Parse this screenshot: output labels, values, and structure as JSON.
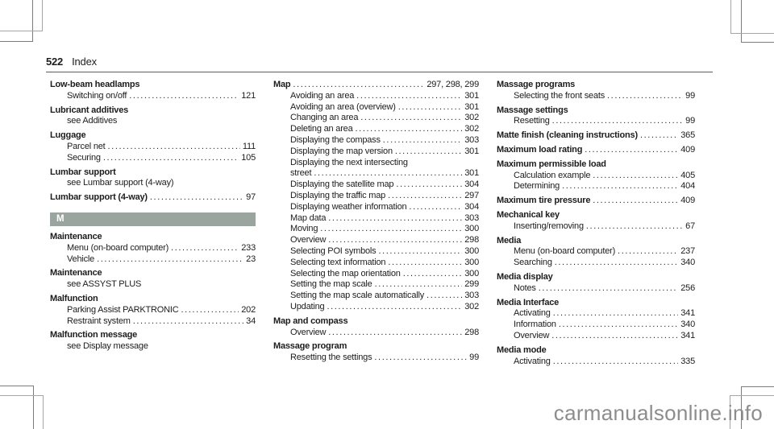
{
  "page": {
    "number": "522",
    "section": "Index"
  },
  "watermark": "carmanualsonline.info",
  "colors": {
    "section_bar": "#9ba5a0",
    "header_rule": "#54605d",
    "text": "#1c1c1c",
    "watermark": "#8d8d8d"
  },
  "columns": [
    {
      "blocks": [
        {
          "title": "Low-beam headlamps",
          "subs": [
            {
              "label": "Switching on/off",
              "pages": "121"
            }
          ]
        },
        {
          "title": "Lubricant additives",
          "subs": [
            {
              "label": "see Additives"
            }
          ]
        },
        {
          "title": "Luggage",
          "subs": [
            {
              "label": "Parcel net",
              "pages": "111"
            },
            {
              "label": "Securing",
              "pages": "105"
            }
          ]
        },
        {
          "title": "Lumbar support",
          "subs": [
            {
              "label": "see Lumbar support (4-way)"
            }
          ]
        },
        {
          "title": "Lumbar support (4-way)",
          "pages": "97",
          "subs": []
        },
        {
          "type": "section",
          "label": "M"
        },
        {
          "title": "Maintenance",
          "subs": [
            {
              "label": "Menu (on-board computer)",
              "pages": "233"
            },
            {
              "label": "Vehicle",
              "pages": "23"
            }
          ]
        },
        {
          "title": "Maintenance",
          "subs": [
            {
              "label": "see ASSYST PLUS"
            }
          ]
        },
        {
          "title": "Malfunction",
          "subs": [
            {
              "label": "Parking Assist PARKTRONIC",
              "pages": "202"
            },
            {
              "label": "Restraint system",
              "pages": "34"
            }
          ]
        },
        {
          "title": "Malfunction message",
          "subs": [
            {
              "label": "see Display message"
            }
          ]
        }
      ]
    },
    {
      "blocks": [
        {
          "title": "Map",
          "pages": "297, 298, 299",
          "subs": [
            {
              "label": "Avoiding an area",
              "pages": "301"
            },
            {
              "label": "Avoiding an area (overview)",
              "pages": "301"
            },
            {
              "label": "Changing an area",
              "pages": "302"
            },
            {
              "label": "Deleting an area",
              "pages": "302"
            },
            {
              "label": "Displaying the compass",
              "pages": "303"
            },
            {
              "label": "Displaying the map version",
              "pages": "301"
            },
            {
              "label": "Displaying the next intersecting"
            },
            {
              "label": "street",
              "pages": "301"
            },
            {
              "label": "Displaying the satellite map",
              "pages": "304"
            },
            {
              "label": "Displaying the traffic map",
              "pages": "297"
            },
            {
              "label": "Displaying weather information",
              "pages": "304"
            },
            {
              "label": "Map data",
              "pages": "303"
            },
            {
              "label": "Moving",
              "pages": "300"
            },
            {
              "label": "Overview",
              "pages": "298"
            },
            {
              "label": "Selecting POI symbols",
              "pages": "300"
            },
            {
              "label": "Selecting text information",
              "pages": "300"
            },
            {
              "label": "Selecting the map orientation",
              "pages": "300"
            },
            {
              "label": "Setting the map scale",
              "pages": "299"
            },
            {
              "label": "Setting the map scale automatically",
              "pages": "303"
            },
            {
              "label": "Updating",
              "pages": "302"
            }
          ]
        },
        {
          "title": "Map and compass",
          "subs": [
            {
              "label": "Overview",
              "pages": "298"
            }
          ]
        },
        {
          "title": "Massage program",
          "subs": [
            {
              "label": "Resetting the settings",
              "pages": "99"
            }
          ]
        }
      ]
    },
    {
      "blocks": [
        {
          "title": "Massage programs",
          "subs": [
            {
              "label": "Selecting the front seats",
              "pages": "99"
            }
          ]
        },
        {
          "title": "Massage settings",
          "subs": [
            {
              "label": "Resetting",
              "pages": "99"
            }
          ]
        },
        {
          "title": "Matte finish (cleaning instructions)",
          "pages": "365",
          "subs": []
        },
        {
          "title": "Maximum load rating",
          "pages": "409",
          "subs": []
        },
        {
          "title": "Maximum permissible load",
          "subs": [
            {
              "label": "Calculation example",
              "pages": "405"
            },
            {
              "label": "Determining",
              "pages": "404"
            }
          ]
        },
        {
          "title": "Maximum tire pressure",
          "pages": "409",
          "subs": []
        },
        {
          "title": "Mechanical key",
          "subs": [
            {
              "label": "Inserting/removing",
              "pages": "67"
            }
          ]
        },
        {
          "title": "Media",
          "subs": [
            {
              "label": "Menu (on-board computer)",
              "pages": "237"
            },
            {
              "label": "Searching",
              "pages": "340"
            }
          ]
        },
        {
          "title": "Media display",
          "subs": [
            {
              "label": "Notes",
              "pages": "256"
            }
          ]
        },
        {
          "title": "Media Interface",
          "subs": [
            {
              "label": "Activating",
              "pages": "341"
            },
            {
              "label": "Information",
              "pages": "340"
            },
            {
              "label": "Overview",
              "pages": "341"
            }
          ]
        },
        {
          "title": "Media mode",
          "subs": [
            {
              "label": "Activating",
              "pages": "335"
            }
          ]
        }
      ]
    }
  ]
}
